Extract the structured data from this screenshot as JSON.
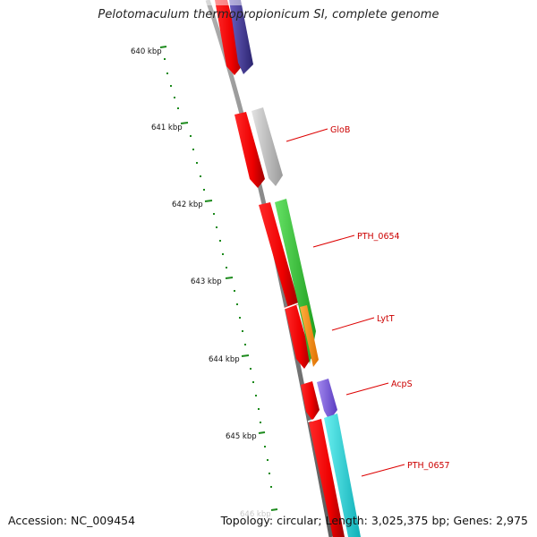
{
  "title": "Pelotomaculum thermopropionicum SI, complete genome",
  "footer": {
    "accession": "Accession: NC_009454",
    "stats": "Topology: circular; Length: 3,025,375 bp; Genes: 2,975"
  },
  "colors": {
    "axis_tick": "#1c8a1c",
    "label_text": "#cc0000",
    "leader_line": "#dd0000",
    "backbone": "#8c8c8c"
  },
  "ticks": [
    {
      "label": "640 kbp"
    },
    {
      "label": "641 kbp"
    },
    {
      "label": "642 kbp"
    },
    {
      "label": "643 kbp"
    },
    {
      "label": "644 kbp"
    },
    {
      "label": "645 kbp"
    },
    {
      "label": "646 kbp"
    }
  ],
  "genes": [
    {
      "name": "GloB"
    },
    {
      "name": "PTH_0654"
    },
    {
      "name": "LytT"
    },
    {
      "name": "AcpS"
    },
    {
      "name": "PTH_0657"
    }
  ]
}
